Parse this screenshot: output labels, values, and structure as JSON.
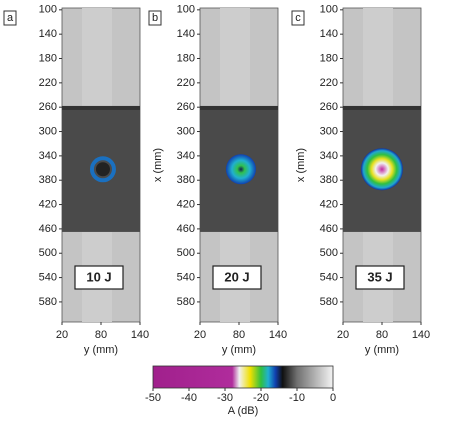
{
  "chart_data": [
    {
      "type": "image",
      "panel": "a",
      "annotation": "10 J",
      "xlabel": "y (mm)",
      "xlim": [
        20,
        140
      ],
      "xticks": [
        20,
        80,
        140
      ],
      "ylim": [
        97,
        613
      ],
      "yticks": [
        100,
        140,
        180,
        220,
        260,
        300,
        340,
        380,
        420,
        460,
        500,
        540,
        580
      ]
    },
    {
      "type": "image",
      "panel": "b",
      "annotation": "20 J",
      "xlabel": "y (mm)",
      "ylabel": "x (mm)",
      "xlim": [
        20,
        140
      ],
      "xticks": [
        20,
        80,
        140
      ],
      "ylim": [
        97,
        613
      ],
      "yticks": [
        100,
        140,
        180,
        220,
        260,
        300,
        340,
        380,
        420,
        460,
        500,
        540,
        580
      ]
    },
    {
      "type": "image",
      "panel": "c",
      "annotation": "35 J",
      "xlabel": "y (mm)",
      "ylabel": "x (mm)",
      "xlim": [
        20,
        140
      ],
      "xticks": [
        20,
        80,
        140
      ],
      "ylim": [
        97,
        613
      ],
      "yticks": [
        100,
        140,
        180,
        220,
        260,
        300,
        340,
        380,
        420,
        460,
        500,
        540,
        580
      ]
    },
    {
      "type": "colorbar",
      "xlabel": "A (dB)",
      "xlim": [
        -50,
        0
      ],
      "xticks": [
        -50,
        -40,
        -30,
        -20,
        -10,
        0
      ],
      "stops": [
        {
          "value": -50,
          "color": "#a0208c"
        },
        {
          "value": -28,
          "color": "#b02c9c"
        },
        {
          "value": -26,
          "color": "#f0f0f0"
        },
        {
          "value": -23,
          "color": "#f0e000"
        },
        {
          "value": -20,
          "color": "#30c040"
        },
        {
          "value": -18,
          "color": "#20b0d0"
        },
        {
          "value": -16,
          "color": "#1040b0"
        },
        {
          "value": -14,
          "color": "#101010"
        },
        {
          "value": -10,
          "color": "#707070"
        },
        {
          "value": 0,
          "color": "#f4f4f4"
        }
      ]
    }
  ]
}
